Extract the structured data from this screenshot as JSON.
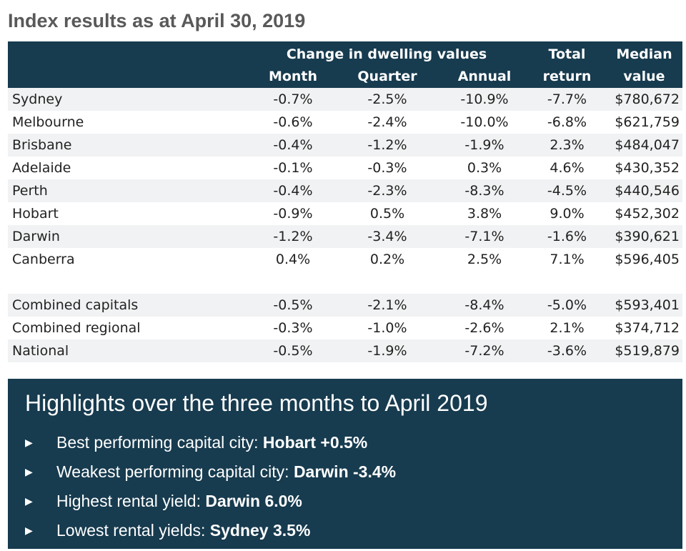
{
  "title": "Index results as at April 30, 2019",
  "table": {
    "group_header": "Change in dwelling values",
    "columns": {
      "month": "Month",
      "quarter": "Quarter",
      "annual": "Annual",
      "total_line1": "Total",
      "total_line2": "return",
      "median_line1": "Median",
      "median_line2": "value"
    },
    "rows": [
      {
        "name": "Sydney",
        "month": "-0.7%",
        "quarter": "-2.5%",
        "annual": "-10.9%",
        "total": "-7.7%",
        "median": "$780,672"
      },
      {
        "name": "Melbourne",
        "month": "-0.6%",
        "quarter": "-2.4%",
        "annual": "-10.0%",
        "total": "-6.8%",
        "median": "$621,759"
      },
      {
        "name": "Brisbane",
        "month": "-0.4%",
        "quarter": "-1.2%",
        "annual": "-1.9%",
        "total": "2.3%",
        "median": "$484,047"
      },
      {
        "name": "Adelaide",
        "month": "-0.1%",
        "quarter": "-0.3%",
        "annual": "0.3%",
        "total": "4.6%",
        "median": "$430,352"
      },
      {
        "name": "Perth",
        "month": "-0.4%",
        "quarter": "-2.3%",
        "annual": "-8.3%",
        "total": "-4.5%",
        "median": "$440,546"
      },
      {
        "name": "Hobart",
        "month": "-0.9%",
        "quarter": "0.5%",
        "annual": "3.8%",
        "total": "9.0%",
        "median": "$452,302"
      },
      {
        "name": "Darwin",
        "month": "-1.2%",
        "quarter": "-3.4%",
        "annual": "-7.1%",
        "total": "-1.6%",
        "median": "$390,621"
      },
      {
        "name": "Canberra",
        "month": "0.4%",
        "quarter": "0.2%",
        "annual": "2.5%",
        "total": "7.1%",
        "median": "$596,405"
      }
    ],
    "summary_rows": [
      {
        "name": "Combined capitals",
        "month": "-0.5%",
        "quarter": "-2.1%",
        "annual": "-8.4%",
        "total": "-5.0%",
        "median": "$593,401"
      },
      {
        "name": "Combined regional",
        "month": "-0.3%",
        "quarter": "-1.0%",
        "annual": "-2.6%",
        "total": "2.1%",
        "median": "$374,712"
      },
      {
        "name": "National",
        "month": "-0.5%",
        "quarter": "-1.9%",
        "annual": "-7.2%",
        "total": "-3.6%",
        "median": "$519,879"
      }
    ]
  },
  "highlights": {
    "title": "Highlights over the three months to April 2019",
    "items": [
      {
        "label": "Best performing capital city: ",
        "value": "Hobart +0.5%"
      },
      {
        "label": "Weakest performing capital city: ",
        "value": "Darwin -3.4%"
      },
      {
        "label": "Highest rental yield: ",
        "value": "Darwin 6.0%"
      },
      {
        "label": "Lowest rental yields: ",
        "value": "Sydney 3.5%"
      }
    ]
  },
  "colors": {
    "header_bg": "#173b4f",
    "stripe": "#f1f2f3",
    "title_text": "#595959"
  },
  "icons": {
    "bullet": "triangle-right-icon"
  }
}
